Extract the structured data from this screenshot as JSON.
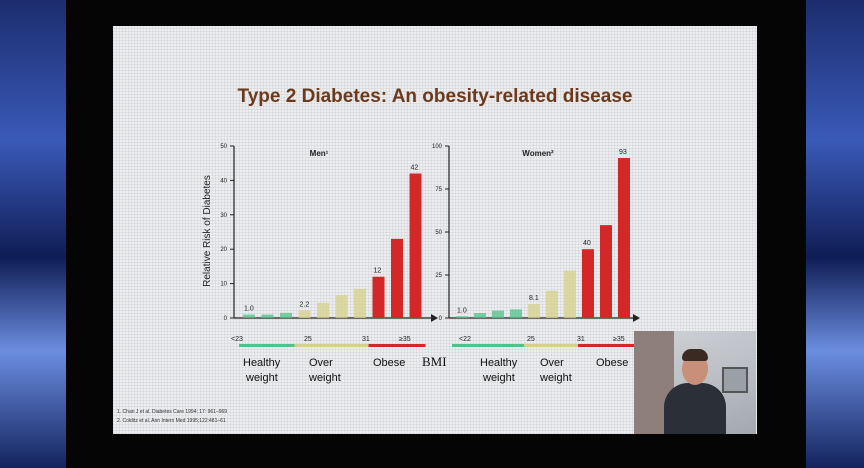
{
  "slide": {
    "title": "Type 2 Diabetes: An obesity-related disease",
    "y_axis_label": "Relative Risk of Diabetes",
    "bmi_label": "BMI",
    "footnotes": [
      "1. Chan J et al. Diabetes Care 1994; 17: 961–969",
      "2. Colditz et al. Ann Intern Med 1995;122:481–61"
    ]
  },
  "categories": {
    "healthy": [
      "Healthy",
      "weight"
    ],
    "over": [
      "Over",
      "weight"
    ],
    "obese": [
      "Obese"
    ]
  },
  "colors": {
    "healthy": "#4fc28a",
    "over": "#d6d08a",
    "obese": "#d42828",
    "title": "#6b3a1c"
  },
  "chart_data": [
    {
      "type": "bar",
      "title": "Men¹",
      "ylim": [
        0,
        50
      ],
      "yticks": [
        0,
        10,
        20,
        30,
        40,
        50
      ],
      "ytick_labels": [
        "0",
        "10",
        "20",
        "30",
        "40",
        "50"
      ],
      "xtick_labels": [
        "<23",
        "25",
        "31",
        "≥35"
      ],
      "values": [
        1.0,
        1.0,
        1.5,
        2.2,
        4.4,
        6.7,
        8.5,
        12,
        23,
        42
      ],
      "groups": [
        "healthy",
        "healthy",
        "healthy",
        "over",
        "over",
        "over",
        "over",
        "obese",
        "obese",
        "obese"
      ],
      "data_labels": [
        "1.0",
        "",
        "",
        "2.2",
        "",
        "",
        "",
        "12",
        "",
        "42"
      ]
    },
    {
      "type": "bar",
      "title": "Women²",
      "ylim": [
        0,
        100
      ],
      "yticks": [
        0,
        25,
        50,
        75,
        100
      ],
      "ytick_labels": [
        "0",
        "25",
        "50",
        "75",
        "100"
      ],
      "xtick_labels": [
        "<22",
        "25",
        "31",
        "≥35"
      ],
      "values": [
        1.0,
        2.9,
        4.3,
        5.0,
        8.1,
        15.8,
        27.6,
        40,
        54,
        93
      ],
      "groups": [
        "healthy",
        "healthy",
        "healthy",
        "healthy",
        "over",
        "over",
        "over",
        "obese",
        "obese",
        "obese"
      ],
      "data_labels": [
        "1.0",
        "",
        "",
        "",
        "8.1",
        "",
        "",
        "40",
        "",
        "93"
      ]
    }
  ]
}
